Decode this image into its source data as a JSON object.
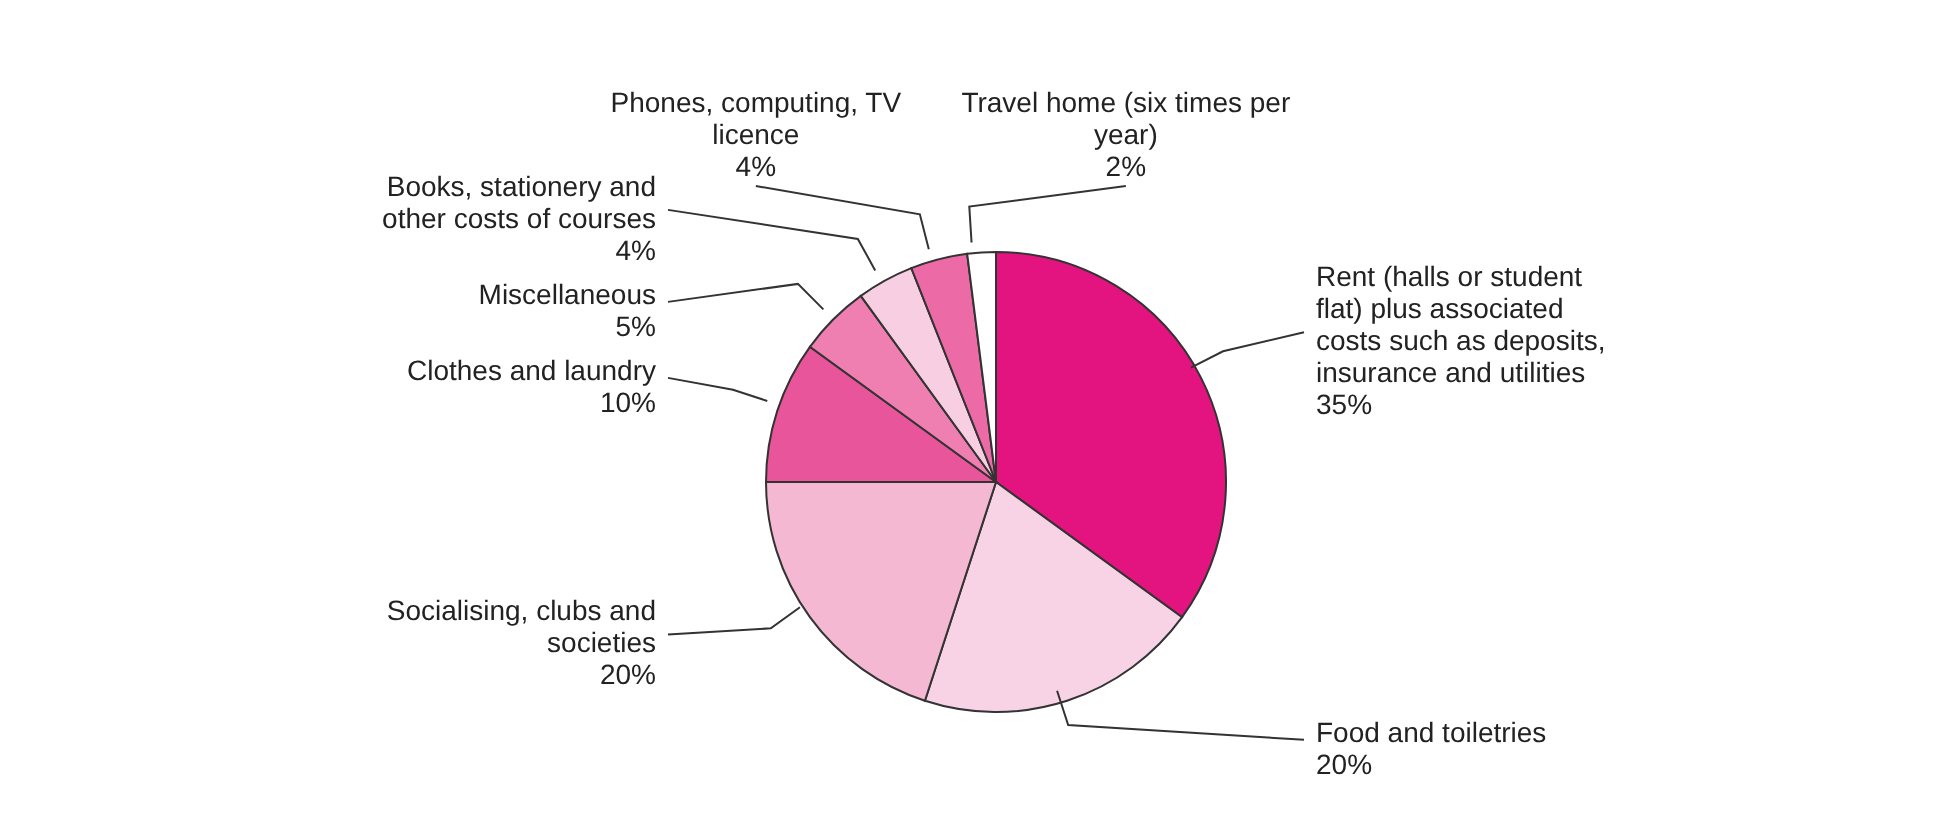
{
  "chart_data": {
    "type": "pie",
    "categories": [
      "Rent (halls or student flat) plus associated costs such as deposits, insurance and utilities",
      "Food and toiletries",
      "Socialising, clubs and societies",
      "Clothes and laundry",
      "Miscellaneous",
      "Books, stationery and other costs of courses",
      "Phones, computing, TV licence",
      "Travel home (six times per year)"
    ],
    "values": [
      35,
      20,
      20,
      10,
      5,
      4,
      4,
      2
    ],
    "colors": [
      "#e3147f",
      "#f7d3e5",
      "#f4b8d2",
      "#e8559a",
      "#ef7fb1",
      "#f8cfe2",
      "#ec6aa5",
      "#ffffff"
    ],
    "value_labels": [
      "35%",
      "20%",
      "20%",
      "10%",
      "5%",
      "4%",
      "4%",
      "2%"
    ]
  }
}
